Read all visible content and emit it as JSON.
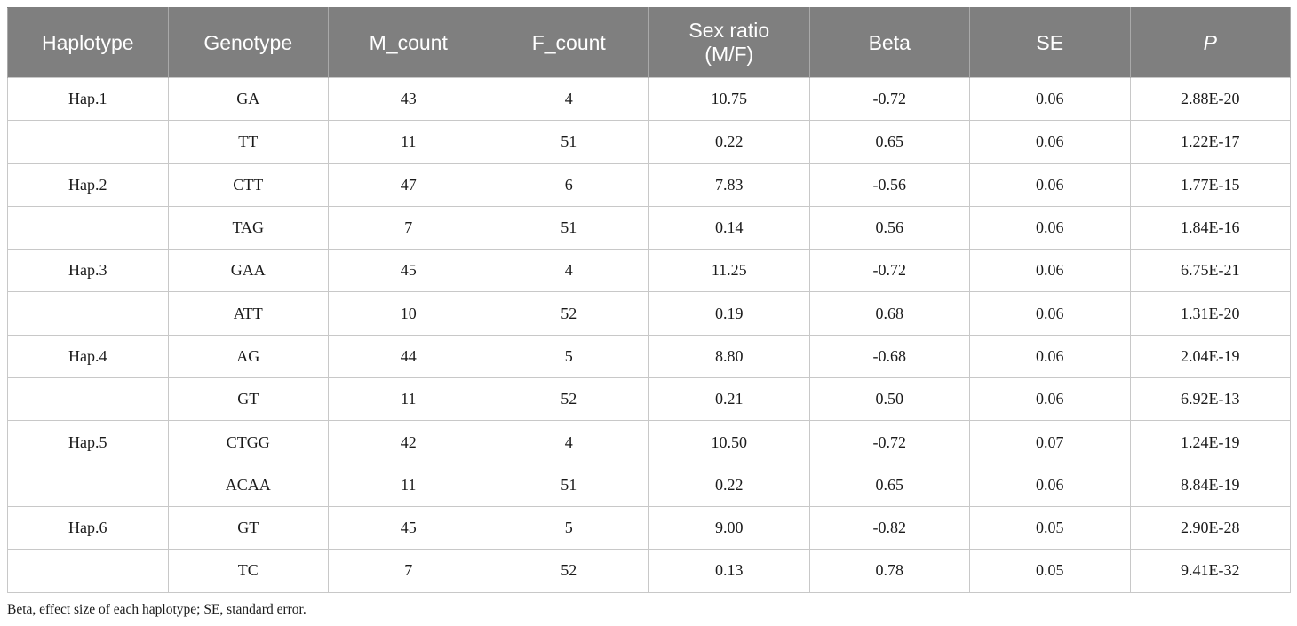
{
  "table": {
    "headers": [
      "Haplotype",
      "Genotype",
      "M_count",
      "F_count",
      "Sex ratio\n(M/F)",
      "Beta",
      "SE",
      "P"
    ],
    "rows": [
      [
        "Hap.1",
        "GA",
        "43",
        "4",
        "10.75",
        "-0.72",
        "0.06",
        "2.88E-20"
      ],
      [
        "",
        "TT",
        "11",
        "51",
        "0.22",
        "0.65",
        "0.06",
        "1.22E-17"
      ],
      [
        "Hap.2",
        "CTT",
        "47",
        "6",
        "7.83",
        "-0.56",
        "0.06",
        "1.77E-15"
      ],
      [
        "",
        "TAG",
        "7",
        "51",
        "0.14",
        "0.56",
        "0.06",
        "1.84E-16"
      ],
      [
        "Hap.3",
        "GAA",
        "45",
        "4",
        "11.25",
        "-0.72",
        "0.06",
        "6.75E-21"
      ],
      [
        "",
        "ATT",
        "10",
        "52",
        "0.19",
        "0.68",
        "0.06",
        "1.31E-20"
      ],
      [
        "Hap.4",
        "AG",
        "44",
        "5",
        "8.80",
        "-0.68",
        "0.06",
        "2.04E-19"
      ],
      [
        "",
        "GT",
        "11",
        "52",
        "0.21",
        "0.50",
        "0.06",
        "6.92E-13"
      ],
      [
        "Hap.5",
        "CTGG",
        "42",
        "4",
        "10.50",
        "-0.72",
        "0.07",
        "1.24E-19"
      ],
      [
        "",
        "ACAA",
        "11",
        "51",
        "0.22",
        "0.65",
        "0.06",
        "8.84E-19"
      ],
      [
        "Hap.6",
        "GT",
        "45",
        "5",
        "9.00",
        "-0.82",
        "0.05",
        "2.90E-28"
      ],
      [
        "",
        "TC",
        "7",
        "52",
        "0.13",
        "0.78",
        "0.05",
        "9.41E-32"
      ]
    ]
  },
  "footnote": "Beta, effect size of each haplotype; SE, standard error.",
  "colors": {
    "header_bg": "#7f7f7f",
    "header_text": "#ffffff",
    "grid_line": "#c8c8c8"
  }
}
